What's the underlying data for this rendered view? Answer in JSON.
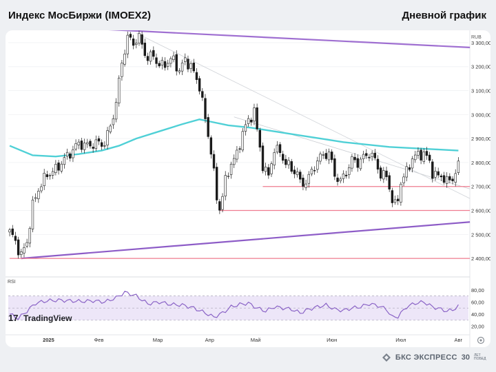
{
  "header": {
    "title": "Индекс МосБиржи (IMOEX2)",
    "subtitle": "Дневной график"
  },
  "footer": {
    "brand_name": "БКС ЭКСПРЕСС",
    "anniversary": "30",
    "anniversary_note": "ЛЕТ ПОБЕД"
  },
  "chart_data": {
    "type": "candlestick",
    "currency_label": "RUB",
    "price_axis": {
      "range": [
        2340,
        3340
      ],
      "ticks": [
        2400,
        2500,
        2600,
        2700,
        2800,
        2900,
        3000,
        3100,
        3200,
        3300
      ],
      "tick_labels": [
        "2 400,00",
        "2 500,00",
        "2 600,00",
        "2 700,00",
        "2 800,00",
        "2 900,00",
        "3 000,00",
        "3 100,00",
        "3 200,00",
        "3 300,00"
      ]
    },
    "time_axis": {
      "labels": [
        "2025",
        "Фев",
        "Мар",
        "Апр",
        "Май",
        "Июн",
        "Июл",
        "Авг"
      ],
      "label_positions": [
        13.5,
        31,
        51.5,
        69.5,
        85.5,
        112,
        136,
        156
      ]
    },
    "sessions": 160,
    "close_keypoints": [
      [
        0,
        2510
      ],
      [
        2,
        2470
      ],
      [
        4,
        2410
      ],
      [
        6,
        2470
      ],
      [
        8,
        2620
      ],
      [
        10,
        2690
      ],
      [
        13,
        2750
      ],
      [
        16,
        2770
      ],
      [
        18,
        2800
      ],
      [
        21,
        2840
      ],
      [
        24,
        2880
      ],
      [
        27,
        2870
      ],
      [
        30,
        2880
      ],
      [
        33,
        2880
      ],
      [
        35,
        2950
      ],
      [
        37,
        3050
      ],
      [
        39,
        3220
      ],
      [
        41,
        3320
      ],
      [
        43,
        3300
      ],
      [
        45,
        3320
      ],
      [
        46,
        3290
      ],
      [
        48,
        3230
      ],
      [
        50,
        3250
      ],
      [
        52,
        3200
      ],
      [
        55,
        3220
      ],
      [
        57,
        3230
      ],
      [
        59,
        3180
      ],
      [
        61,
        3230
      ],
      [
        63,
        3200
      ],
      [
        66,
        3120
      ],
      [
        68,
        2980
      ],
      [
        70,
        2850
      ],
      [
        72,
        2650
      ],
      [
        73,
        2610
      ],
      [
        75,
        2720
      ],
      [
        77,
        2800
      ],
      [
        79,
        2830
      ],
      [
        81,
        2930
      ],
      [
        83,
        2970
      ],
      [
        85,
        3020
      ],
      [
        86,
        2930
      ],
      [
        88,
        2790
      ],
      [
        90,
        2740
      ],
      [
        92,
        2860
      ],
      [
        94,
        2840
      ],
      [
        96,
        2800
      ],
      [
        98,
        2770
      ],
      [
        100,
        2760
      ],
      [
        101,
        2710
      ],
      [
        103,
        2720
      ],
      [
        105,
        2760
      ],
      [
        107,
        2810
      ],
      [
        109,
        2830
      ],
      [
        111,
        2840
      ],
      [
        113,
        2750
      ],
      [
        115,
        2720
      ],
      [
        117,
        2760
      ],
      [
        119,
        2810
      ],
      [
        121,
        2800
      ],
      [
        123,
        2820
      ],
      [
        125,
        2840
      ],
      [
        127,
        2810
      ],
      [
        129,
        2750
      ],
      [
        131,
        2740
      ],
      [
        132,
        2700
      ],
      [
        133,
        2640
      ],
      [
        134,
        2620
      ],
      [
        135,
        2650
      ],
      [
        136,
        2720
      ],
      [
        138,
        2760
      ],
      [
        140,
        2820
      ],
      [
        142,
        2830
      ],
      [
        144,
        2840
      ],
      [
        146,
        2800
      ],
      [
        147,
        2760
      ],
      [
        149,
        2740
      ],
      [
        151,
        2740
      ],
      [
        152,
        2720
      ],
      [
        154,
        2730
      ],
      [
        155,
        2770
      ],
      [
        156,
        2780
      ]
    ],
    "moving_average": [
      [
        0,
        2870
      ],
      [
        8,
        2830
      ],
      [
        16,
        2825
      ],
      [
        24,
        2835
      ],
      [
        32,
        2850
      ],
      [
        38,
        2870
      ],
      [
        44,
        2900
      ],
      [
        52,
        2930
      ],
      [
        60,
        2960
      ],
      [
        66,
        2980
      ],
      [
        70,
        2970
      ],
      [
        76,
        2955
      ],
      [
        84,
        2945
      ],
      [
        92,
        2930
      ],
      [
        100,
        2915
      ],
      [
        108,
        2900
      ],
      [
        116,
        2885
      ],
      [
        124,
        2875
      ],
      [
        132,
        2865
      ],
      [
        140,
        2860
      ],
      [
        148,
        2855
      ],
      [
        156,
        2850
      ]
    ],
    "trendlines": {
      "upper": [
        [
          0,
          3375
        ],
        [
          160,
          3280
        ]
      ],
      "lower": [
        [
          4,
          2400
        ],
        [
          160,
          2552
        ]
      ],
      "mid_decline_1": [
        [
          44,
          3340
        ],
        [
          160,
          2650
        ]
      ],
      "mid_decline_2": [
        [
          78,
          2990
        ],
        [
          160,
          2690
        ]
      ]
    },
    "support_levels": [
      {
        "value": 2700,
        "from": 88,
        "to": 160
      },
      {
        "value": 2600,
        "from": 73,
        "to": 160
      },
      {
        "value": 2400,
        "from": 0,
        "to": 160
      }
    ],
    "rsi": {
      "label": "RSI",
      "range": [
        15,
        90
      ],
      "ticks": [
        20,
        40,
        60,
        80
      ],
      "tick_labels": [
        "20,00",
        "40,00",
        "60,00",
        "80,00"
      ],
      "band": [
        30,
        70
      ],
      "midline": 50,
      "keypoints": [
        [
          0,
          40
        ],
        [
          3,
          33
        ],
        [
          6,
          45
        ],
        [
          9,
          58
        ],
        [
          13,
          62
        ],
        [
          17,
          63
        ],
        [
          21,
          62
        ],
        [
          25,
          61
        ],
        [
          29,
          62
        ],
        [
          33,
          60
        ],
        [
          37,
          67
        ],
        [
          40,
          76
        ],
        [
          44,
          70
        ],
        [
          48,
          57
        ],
        [
          52,
          60
        ],
        [
          56,
          56
        ],
        [
          60,
          55
        ],
        [
          64,
          50
        ],
        [
          68,
          42
        ],
        [
          71,
          35
        ],
        [
          74,
          42
        ],
        [
          77,
          52
        ],
        [
          80,
          56
        ],
        [
          83,
          58
        ],
        [
          86,
          50
        ],
        [
          89,
          45
        ],
        [
          92,
          52
        ],
        [
          95,
          50
        ],
        [
          98,
          48
        ],
        [
          101,
          42
        ],
        [
          104,
          48
        ],
        [
          107,
          52
        ],
        [
          110,
          55
        ],
        [
          113,
          48
        ],
        [
          116,
          46
        ],
        [
          119,
          50
        ],
        [
          122,
          52
        ],
        [
          125,
          57
        ],
        [
          128,
          54
        ],
        [
          131,
          48
        ],
        [
          133,
          35
        ],
        [
          135,
          36
        ],
        [
          138,
          52
        ],
        [
          141,
          58
        ],
        [
          144,
          60
        ],
        [
          147,
          52
        ],
        [
          150,
          48
        ],
        [
          152,
          45
        ],
        [
          154,
          47
        ],
        [
          156,
          53
        ]
      ],
      "last_value": 53
    }
  }
}
